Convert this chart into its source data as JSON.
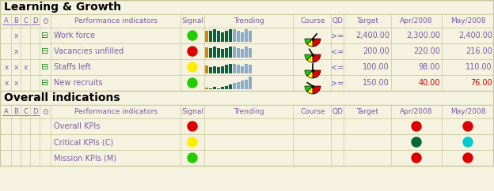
{
  "bg_color": "#f5f2e0",
  "border_color": "#c8c8a0",
  "header_text_color": "#7b5ea7",
  "cell_text_color": "#7b5ea7",
  "red_text_color": "#cc0000",
  "section1_title": "Learning & Growth",
  "section2_title": "Overall indications",
  "rows_section1": [
    {
      "A": "",
      "B": "x",
      "C": "",
      "D": "",
      "name": "Work force",
      "signal": "green",
      "qd": ">=",
      "target": "2,400.00",
      "apr": "2,300.00",
      "may": "2,400.00",
      "apr_red": false,
      "may_red": false,
      "trend_type": "bars_mixed",
      "gauge_needle": 0.72
    },
    {
      "A": "",
      "B": "x",
      "C": "",
      "D": "",
      "name": "Vacancies unfilled",
      "signal": "red",
      "qd": "<=",
      "target": "200.00",
      "apr": "220.00",
      "may": "216.00",
      "apr_red": false,
      "may_red": false,
      "trend_type": "bars_mixed2",
      "gauge_needle": 0.32
    },
    {
      "A": "x",
      "B": "x",
      "C": "x",
      "D": "",
      "name": "Staffs left",
      "signal": "yellow",
      "qd": "<=",
      "target": "100.00",
      "apr": "98.00",
      "may": "110.00",
      "apr_red": false,
      "may_red": false,
      "trend_type": "bars_mixed3",
      "gauge_needle": 0.5
    },
    {
      "A": "x",
      "B": "x",
      "C": "",
      "D": "",
      "name": "New recruits",
      "signal": "green",
      "qd": ">=",
      "target": "150.00",
      "apr": "40.00",
      "may": "76.00",
      "apr_red": true,
      "may_red": true,
      "trend_type": "bars_rising",
      "gauge_needle": 0.18
    }
  ],
  "rows_section2": [
    {
      "name": "Overall KPIs",
      "signal": "red",
      "apr_circle": "red",
      "may_circle": "red"
    },
    {
      "name": "Critical KPIs (C)",
      "signal": "yellow",
      "apr_circle": "darkgreen",
      "may_circle": "cyan"
    },
    {
      "name": "Mission KPIs (M)",
      "signal": "green",
      "apr_circle": "red",
      "may_circle": "red"
    }
  ],
  "figsize": [
    6.24,
    2.42
  ],
  "dpi": 100
}
